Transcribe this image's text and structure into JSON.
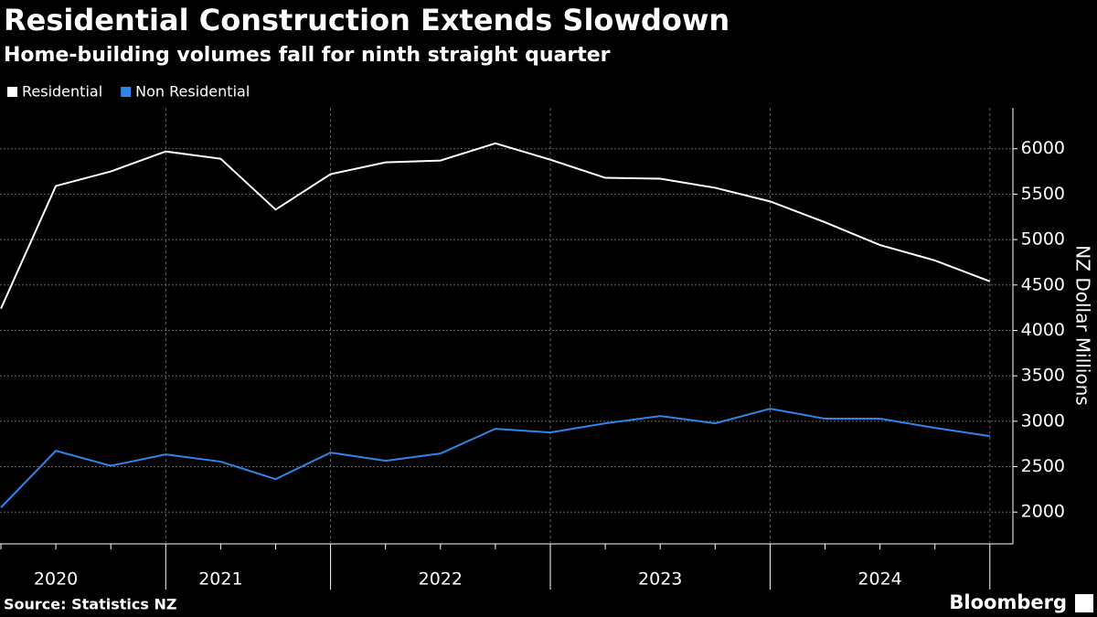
{
  "chart_data": {
    "type": "line",
    "title": "Residential Construction Extends Slowdown",
    "subtitle": "Home-building volumes fall for ninth straight quarter",
    "y_axis_label": "NZ Dollar Millions",
    "source": "Source: Statistics NZ",
    "brand": "Bloomberg",
    "categories": [
      null,
      "2020",
      null,
      null,
      "2021",
      null,
      null,
      null,
      "2022",
      null,
      null,
      null,
      "2023",
      null,
      null,
      null,
      "2024",
      null,
      null
    ],
    "series": [
      {
        "name": "Residential",
        "color": "#ffffff",
        "values": [
          4240,
          5590,
          5750,
          5970,
          5890,
          5330,
          5720,
          5850,
          5870,
          6060,
          5880,
          5680,
          5670,
          5570,
          5420,
          5190,
          4940,
          4770,
          4540
        ]
      },
      {
        "name": "Non Residential",
        "color": "#2f86e8",
        "values": [
          2050,
          2675,
          2510,
          2635,
          2555,
          2363,
          2655,
          2564,
          2645,
          2917,
          2877,
          2977,
          3058,
          2977,
          3138,
          3028,
          3028,
          2927,
          2836
        ]
      }
    ],
    "ylim": [
      1650,
      6450
    ],
    "yticks": [
      2000,
      2500,
      3000,
      3500,
      4000,
      4500,
      5000,
      5500,
      6000
    ],
    "grid": true,
    "legend": "top-left"
  }
}
